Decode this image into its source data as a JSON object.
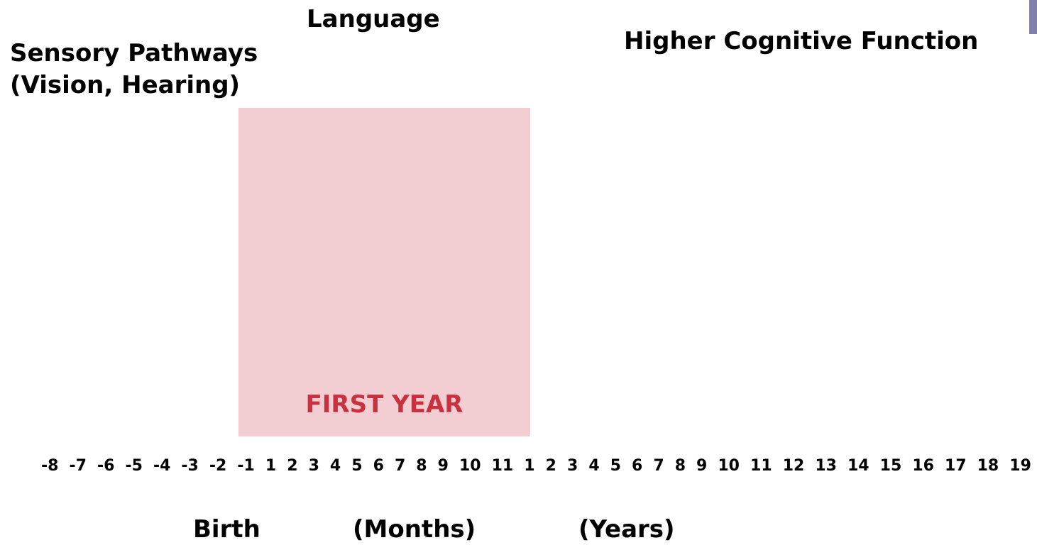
{
  "labels": {
    "language": "Language",
    "sensory": [
      "Sensory Pathways",
      "(Vision, Hearing)"
    ],
    "higher": "Higher Cognitive Function",
    "first_year": "FIRST YEAR"
  },
  "timeline": {
    "prenatal": [
      "-8",
      "-7",
      "-6",
      "-5",
      "-4",
      "-3",
      "-2",
      "-1"
    ],
    "months": [
      "1",
      "2",
      "3",
      "4",
      "5",
      "6",
      "7",
      "8",
      "9",
      "10",
      "11"
    ],
    "years": [
      "1",
      "2",
      "3",
      "4",
      "5",
      "6",
      "7",
      "8",
      "9",
      "10",
      "11",
      "12",
      "13",
      "14",
      "15",
      "16",
      "17",
      "18",
      "19"
    ]
  },
  "footer": {
    "birth": "Birth",
    "months": "(Months)",
    "years": "(Years)"
  }
}
